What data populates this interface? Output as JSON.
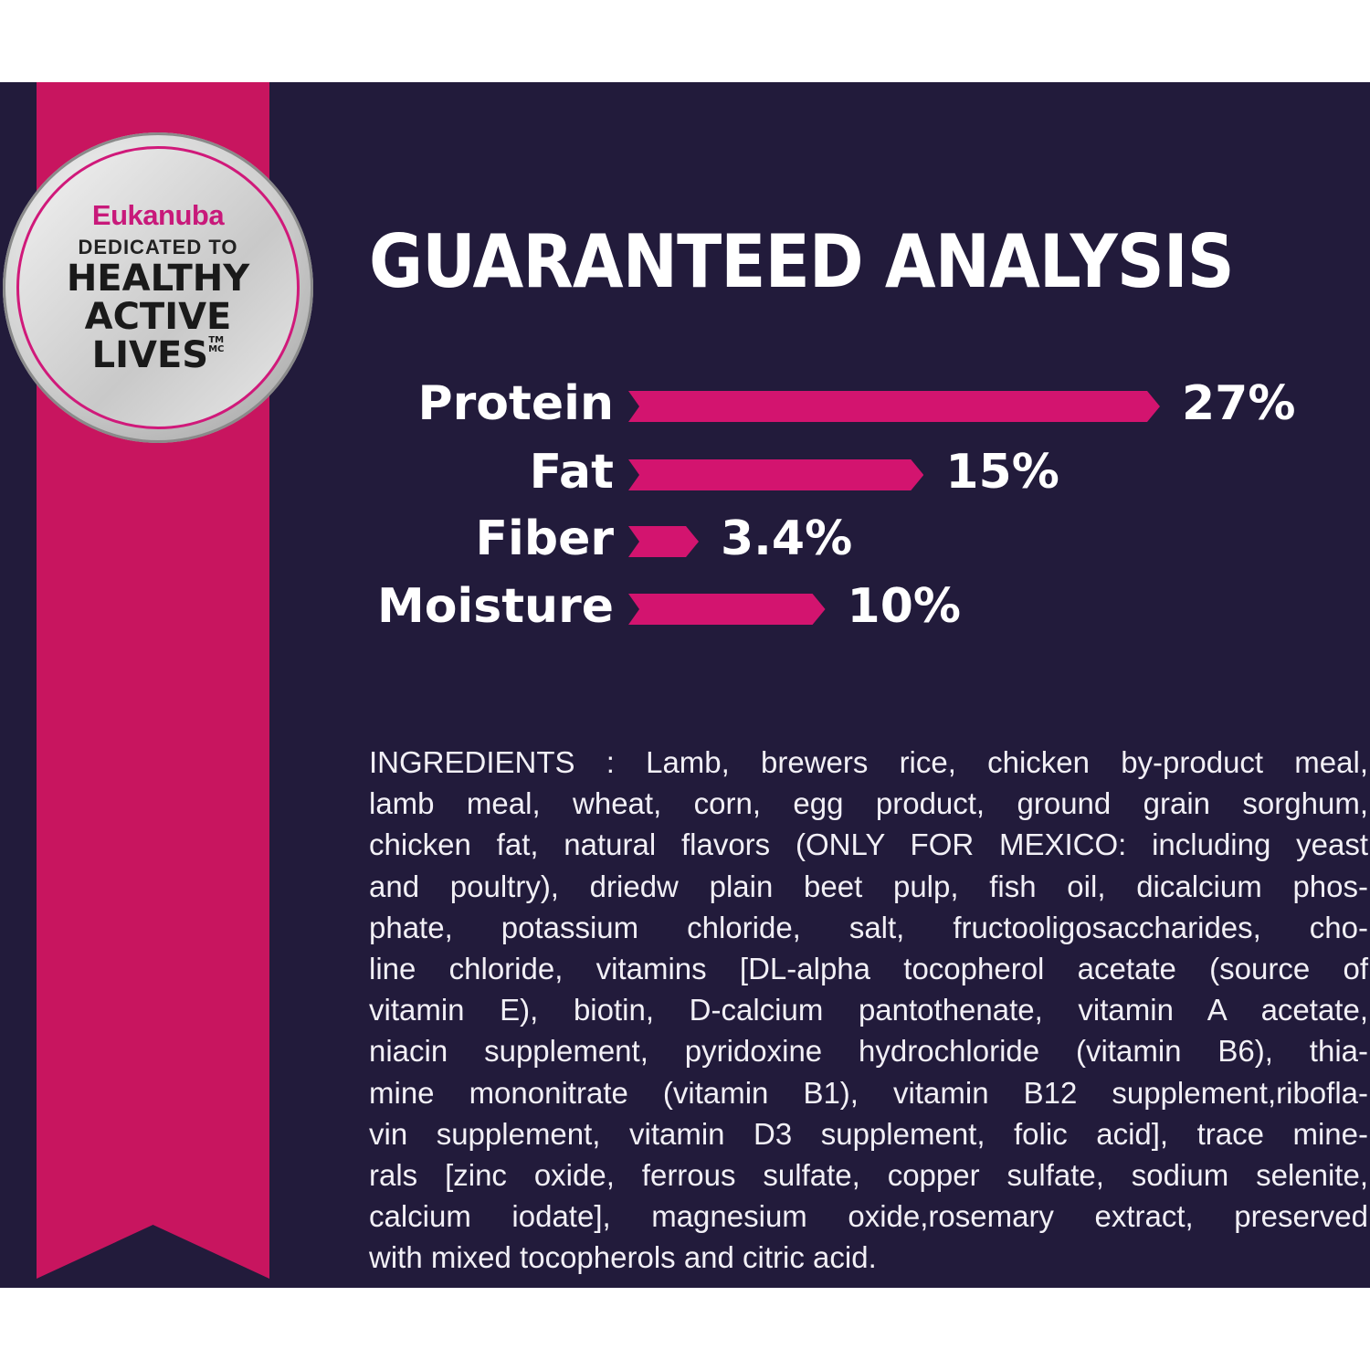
{
  "badge": {
    "brand": "Eukanuba",
    "line1": "DEDICATED TO",
    "line2": "HEALTHY",
    "line3": "ACTIVE",
    "line4": "LIVES",
    "tm": "TM",
    "mc": "MC"
  },
  "colors": {
    "background": "#221b3b",
    "accent": "#d3146f",
    "ribbon": "#c8155f"
  },
  "chart_data": {
    "type": "bar",
    "title": "GUARANTEED ANALYSIS",
    "orientation": "horizontal",
    "categories": [
      "Protein",
      "Fat",
      "Fiber",
      "Moisture"
    ],
    "values": [
      27,
      15,
      3.4,
      10
    ],
    "value_labels": [
      "27%",
      "15%",
      "3.4%",
      "10%"
    ],
    "grid": false
  },
  "ingredients": {
    "lines": [
      "INGREDIENTS : Lamb, brewers rice, chicken by-product meal,",
      "lamb meal, wheat, corn, egg product, ground grain sorghum,",
      "chicken fat, natural flavors (ONLY FOR MEXICO: including yeast",
      "and poultry), driedw plain beet pulp, fish oil, dicalcium phos-",
      "phate, potassium chloride, salt, fructooligosaccharides, cho-",
      "line chloride, vitamins [DL-alpha tocopherol acetate (source of",
      "vitamin E), biotin, D-calcium pantothenate, vitamin A acetate,",
      "niacin supplement, pyridoxine hydrochloride (vitamin B6), thia-",
      "mine mononitrate (vitamin B1), vitamin B12 supplement,ribofla-",
      "vin supplement, vitamin D3 supplement, folic acid], trace mine-",
      "rals [zinc oxide, ferrous sulfate, copper sulfate, sodium selenite,",
      "calcium iodate], magnesium oxide,rosemary extract, preserved",
      "with mixed tocopherols and citric acid."
    ]
  }
}
